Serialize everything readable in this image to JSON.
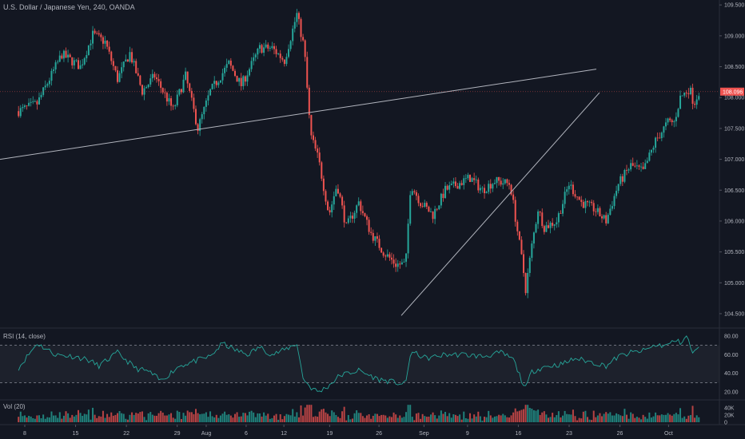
{
  "chart_data": {
    "type": "candlestick",
    "title": "U.S. Dollar / Japanese Yen, 240, OANDA",
    "price_ticks": [
      "109.500",
      "109.000",
      "108.500",
      "108.000",
      "107.500",
      "107.000",
      "106.500",
      "106.000",
      "105.500",
      "105.000",
      "104.500"
    ],
    "price_range": [
      104.28,
      109.58
    ],
    "last_price": "108.096",
    "date_ticks": [
      "8",
      "15",
      "22",
      "29",
      "Aug",
      "6",
      "12",
      "19",
      "26",
      "Sep",
      "9",
      "16",
      "23",
      "26",
      "Oct"
    ],
    "trendlines": [
      {
        "name": "resistance",
        "from": [
          "start",
          107.0
        ],
        "to": [
          "Sep 23",
          108.46
        ]
      },
      {
        "name": "support",
        "from": [
          "Aug 26",
          104.47
        ],
        "to": [
          "Sep 23",
          108.08
        ]
      }
    ],
    "anchors": [
      {
        "d": 0,
        "p": 107.78
      },
      {
        "d": 3,
        "p": 107.9
      },
      {
        "d": 7,
        "p": 108.7
      },
      {
        "d": 10,
        "p": 108.5
      },
      {
        "d": 12,
        "p": 109.02
      },
      {
        "d": 14,
        "p": 108.9
      },
      {
        "d": 16,
        "p": 108.3
      },
      {
        "d": 18,
        "p": 108.72
      },
      {
        "d": 20,
        "p": 108.1
      },
      {
        "d": 22,
        "p": 108.35
      },
      {
        "d": 25,
        "p": 107.8
      },
      {
        "d": 27,
        "p": 108.35
      },
      {
        "d": 29,
        "p": 107.5
      },
      {
        "d": 31,
        "p": 108.1
      },
      {
        "d": 34,
        "p": 108.55
      },
      {
        "d": 36,
        "p": 108.2
      },
      {
        "d": 39,
        "p": 108.8
      },
      {
        "d": 41,
        "p": 108.8
      },
      {
        "d": 43,
        "p": 108.6
      },
      {
        "d": 45,
        "p": 109.35
      },
      {
        "d": 46.2,
        "p": 108.8
      },
      {
        "d": 47.2,
        "p": 107.4
      },
      {
        "d": 48.5,
        "p": 107.0
      },
      {
        "d": 50.2,
        "p": 106.1
      },
      {
        "d": 51.5,
        "p": 106.6
      },
      {
        "d": 53,
        "p": 105.9
      },
      {
        "d": 55,
        "p": 106.3
      },
      {
        "d": 57,
        "p": 105.8
      },
      {
        "d": 59,
        "p": 105.5
      },
      {
        "d": 61,
        "p": 105.3
      },
      {
        "d": 62.6,
        "p": 105.3
      },
      {
        "d": 63.4,
        "p": 106.6
      },
      {
        "d": 65,
        "p": 106.3
      },
      {
        "d": 67,
        "p": 106.1
      },
      {
        "d": 69,
        "p": 106.5
      },
      {
        "d": 71,
        "p": 106.6
      },
      {
        "d": 73,
        "p": 106.7
      },
      {
        "d": 75,
        "p": 106.5
      },
      {
        "d": 77,
        "p": 106.65
      },
      {
        "d": 79.5,
        "p": 106.6
      },
      {
        "d": 81.5,
        "p": 105.3
      },
      {
        "d": 82,
        "p": 104.9
      },
      {
        "d": 83,
        "p": 105.6
      },
      {
        "d": 84,
        "p": 106.2
      },
      {
        "d": 85,
        "p": 105.9
      },
      {
        "d": 87,
        "p": 106.0
      },
      {
        "d": 89,
        "p": 106.6
      },
      {
        "d": 91,
        "p": 106.3
      },
      {
        "d": 93,
        "p": 106.2
      },
      {
        "d": 95,
        "p": 106.0
      },
      {
        "d": 97,
        "p": 106.6
      },
      {
        "d": 99,
        "p": 106.9
      },
      {
        "d": 101,
        "p": 106.8
      },
      {
        "d": 103,
        "p": 107.3
      },
      {
        "d": 105,
        "p": 107.6
      },
      {
        "d": 106,
        "p": 107.6
      },
      {
        "d": 107,
        "p": 108.0
      },
      {
        "d": 108.5,
        "p": 108.15
      },
      {
        "d": 109.2,
        "p": 107.9
      },
      {
        "d": 110,
        "p": 108.1
      }
    ],
    "rsi": {
      "label": "RSI (14, close)",
      "ticks": [
        "80.00",
        "60.00",
        "40.00",
        "20.00"
      ],
      "range": [
        15,
        85
      ],
      "bands": [
        70,
        30
      ],
      "anchors": [
        {
          "d": 0,
          "p": 46
        },
        {
          "d": 3,
          "p": 72
        },
        {
          "d": 6,
          "p": 60
        },
        {
          "d": 9,
          "p": 58
        },
        {
          "d": 11,
          "p": 55
        },
        {
          "d": 13,
          "p": 48
        },
        {
          "d": 16,
          "p": 62
        },
        {
          "d": 19,
          "p": 45
        },
        {
          "d": 21,
          "p": 42
        },
        {
          "d": 23,
          "p": 32
        },
        {
          "d": 26,
          "p": 48
        },
        {
          "d": 29,
          "p": 54
        },
        {
          "d": 31,
          "p": 58
        },
        {
          "d": 33,
          "p": 72
        },
        {
          "d": 35,
          "p": 65
        },
        {
          "d": 37,
          "p": 60
        },
        {
          "d": 39,
          "p": 68
        },
        {
          "d": 41,
          "p": 60
        },
        {
          "d": 43,
          "p": 65
        },
        {
          "d": 45,
          "p": 72
        },
        {
          "d": 46,
          "p": 35
        },
        {
          "d": 47.2,
          "p": 25
        },
        {
          "d": 48.5,
          "p": 20
        },
        {
          "d": 50,
          "p": 26
        },
        {
          "d": 52,
          "p": 38
        },
        {
          "d": 55,
          "p": 43
        },
        {
          "d": 58,
          "p": 34
        },
        {
          "d": 61,
          "p": 30
        },
        {
          "d": 62.6,
          "p": 28
        },
        {
          "d": 63.4,
          "p": 63
        },
        {
          "d": 66,
          "p": 56
        },
        {
          "d": 69,
          "p": 60
        },
        {
          "d": 72,
          "p": 60
        },
        {
          "d": 75,
          "p": 58
        },
        {
          "d": 78,
          "p": 62
        },
        {
          "d": 80,
          "p": 55
        },
        {
          "d": 81.5,
          "p": 30
        },
        {
          "d": 82,
          "p": 24
        },
        {
          "d": 83,
          "p": 42
        },
        {
          "d": 85,
          "p": 47
        },
        {
          "d": 88,
          "p": 50
        },
        {
          "d": 90,
          "p": 56
        },
        {
          "d": 92,
          "p": 53
        },
        {
          "d": 95,
          "p": 48
        },
        {
          "d": 97,
          "p": 58
        },
        {
          "d": 99,
          "p": 62
        },
        {
          "d": 101,
          "p": 64
        },
        {
          "d": 103,
          "p": 70
        },
        {
          "d": 105,
          "p": 70
        },
        {
          "d": 106,
          "p": 75
        },
        {
          "d": 107,
          "p": 73
        },
        {
          "d": 108,
          "p": 80
        },
        {
          "d": 109,
          "p": 62
        },
        {
          "d": 110,
          "p": 66
        }
      ]
    },
    "volume": {
      "label": "Vol (20)",
      "ticks": [
        "40K",
        "20K",
        "0"
      ],
      "range": [
        0,
        55
      ]
    }
  }
}
